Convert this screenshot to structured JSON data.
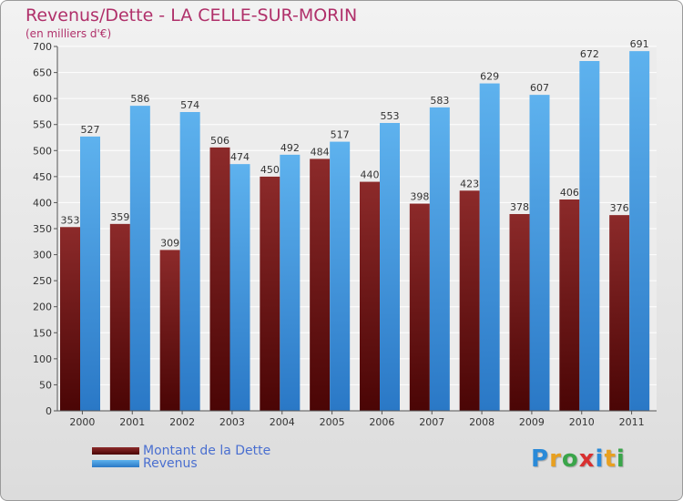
{
  "chart_data": {
    "type": "bar",
    "title": "Revenus/Dette - LA CELLE-SUR-MORIN",
    "subtitle": "(en milliers d'€)",
    "xlabel": "",
    "ylabel": "",
    "ylim": [
      0,
      700
    ],
    "yticks": [
      0,
      50,
      100,
      150,
      200,
      250,
      300,
      350,
      400,
      450,
      500,
      550,
      600,
      650,
      700
    ],
    "grid": true,
    "categories": [
      "2000",
      "2001",
      "2002",
      "2003",
      "2004",
      "2005",
      "2006",
      "2007",
      "2008",
      "2009",
      "2010",
      "2011"
    ],
    "series": [
      {
        "name": "Montant de la Dette",
        "color": "#7a1a1a",
        "values": [
          353,
          359,
          309,
          506,
          450,
          484,
          440,
          398,
          423,
          378,
          406,
          376
        ]
      },
      {
        "name": "Revenus",
        "color": "#4aa3e6",
        "values": [
          527,
          586,
          574,
          474,
          492,
          517,
          553,
          583,
          629,
          607,
          672,
          691
        ]
      }
    ],
    "legend": "bottom-left"
  },
  "logo": {
    "letters": [
      "P",
      "r",
      "o",
      "x",
      "i",
      "t",
      "i"
    ],
    "colors": [
      "#2a8ad8",
      "#e8a020",
      "#3aa54a",
      "#d83030",
      "#2a8ad8",
      "#e8a020",
      "#3aa54a"
    ]
  }
}
